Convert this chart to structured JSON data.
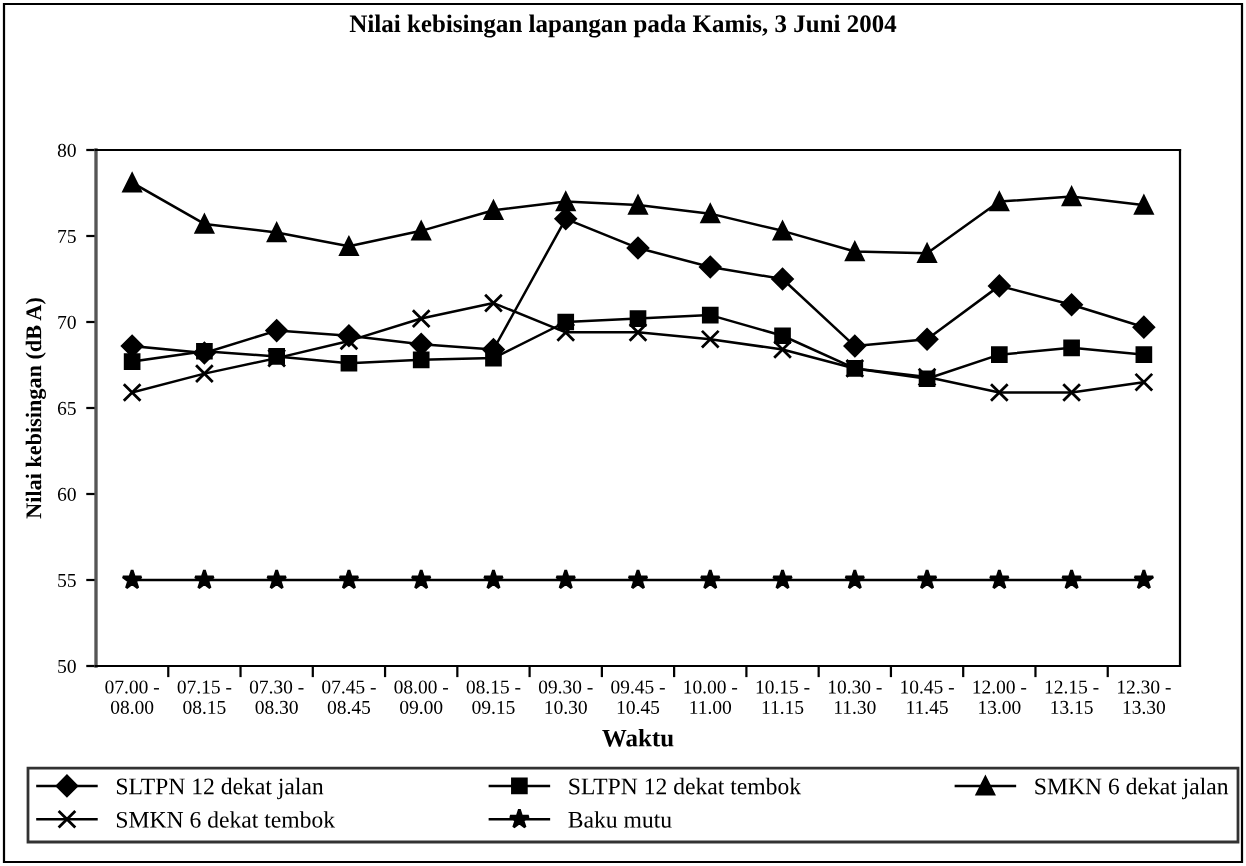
{
  "chart_data": {
    "type": "line",
    "title": "Nilai kebisingan lapangan pada Kamis, 3 Juni 2004",
    "xlabel": "Waktu",
    "ylabel": "Nilai kebisingan (dB A)",
    "categories": [
      "07.00 -\n08.00",
      "07.15 -\n08.15",
      "07.30 -\n08.30",
      "07.45 -\n08.45",
      "08.00 -\n09.00",
      "08.15 -\n09.15",
      "09.30 -\n10.30",
      "09.45 -\n10.45",
      "10.00 -\n11.00",
      "10.15 -\n11.15",
      "10.30 -\n11.30",
      "10.45 -\n11.45",
      "12.00 -\n13.00",
      "12.15 -\n13.15",
      "12.30 -\n13.30"
    ],
    "series": [
      {
        "name": "SLTPN 12 dekat jalan",
        "color": "#000000",
        "marker": "diamond",
        "values": [
          68.6,
          68.2,
          69.5,
          69.2,
          68.7,
          68.4,
          76.0,
          74.3,
          73.2,
          72.5,
          68.6,
          69.0,
          72.1,
          71.0,
          69.7
        ]
      },
      {
        "name": "SLTPN 12 dekat tembok",
        "color": "#000000",
        "marker": "square",
        "values": [
          67.7,
          68.3,
          68.0,
          67.6,
          67.8,
          67.9,
          70.0,
          70.2,
          70.4,
          69.2,
          67.3,
          66.7,
          68.1,
          68.5,
          68.1
        ]
      },
      {
        "name": "SMKN 6 dekat jalan",
        "color": "#000000",
        "marker": "triangle",
        "values": [
          78.1,
          75.7,
          75.2,
          74.4,
          75.3,
          76.5,
          77.0,
          76.8,
          76.3,
          75.3,
          74.1,
          74.0,
          77.0,
          77.3,
          76.8
        ]
      },
      {
        "name": "SMKN 6 dekat tembok",
        "color": "#000000",
        "marker": "cross",
        "values": [
          65.9,
          67.0,
          67.9,
          68.9,
          70.2,
          71.1,
          69.4,
          69.4,
          69.0,
          68.4,
          67.3,
          66.8,
          65.9,
          65.9,
          66.5
        ]
      },
      {
        "name": "Baku mutu",
        "color": "#000000",
        "marker": "star",
        "values": [
          55,
          55,
          55,
          55,
          55,
          55,
          55,
          55,
          55,
          55,
          55,
          55,
          55,
          55,
          55
        ]
      }
    ],
    "ylim": [
      50,
      80
    ],
    "yticks": [
      50,
      55,
      60,
      65,
      70,
      75,
      80
    ],
    "grid": false,
    "legend": "bottom",
    "line_style": "solid"
  }
}
